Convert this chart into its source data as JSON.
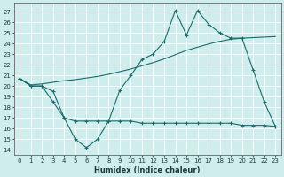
{
  "xlabel": "Humidex (Indice chaleur)",
  "bg_color": "#d0eded",
  "line_color": "#1a6b6b",
  "xlim": [
    -0.5,
    23.5
  ],
  "ylim": [
    13.5,
    27.8
  ],
  "yticks": [
    14,
    15,
    16,
    17,
    18,
    19,
    20,
    21,
    22,
    23,
    24,
    25,
    26,
    27
  ],
  "xticks": [
    0,
    1,
    2,
    3,
    4,
    5,
    6,
    7,
    8,
    9,
    10,
    11,
    12,
    13,
    14,
    15,
    16,
    17,
    18,
    19,
    20,
    21,
    22,
    23
  ],
  "line1_x": [
    0,
    1,
    2,
    3,
    4,
    5,
    6,
    7,
    8,
    9,
    10,
    11,
    12,
    13,
    14,
    15,
    16,
    17,
    18,
    19,
    20,
    21,
    22,
    23
  ],
  "line1_y": [
    20.7,
    20.0,
    20.0,
    18.5,
    17.0,
    15.0,
    14.2,
    15.0,
    16.7,
    19.6,
    21.0,
    22.5,
    23.0,
    24.2,
    27.1,
    24.8,
    27.1,
    25.8,
    25.0,
    24.5,
    24.5,
    21.5,
    18.5,
    16.2
  ],
  "line2_x": [
    0,
    1,
    2,
    3,
    4,
    5,
    6,
    7,
    8,
    9,
    10,
    11,
    12,
    13,
    14,
    15,
    16,
    17,
    18,
    19,
    20,
    21,
    22,
    23
  ],
  "line2_y": [
    20.7,
    20.0,
    20.0,
    19.5,
    17.0,
    16.7,
    16.7,
    16.7,
    16.7,
    16.7,
    16.7,
    16.5,
    16.5,
    16.5,
    16.5,
    16.5,
    16.5,
    16.5,
    16.5,
    16.5,
    16.3,
    16.3,
    16.3,
    16.2
  ],
  "line3_x": [
    0,
    1,
    2,
    3,
    4,
    5,
    6,
    7,
    8,
    9,
    10,
    11,
    12,
    13,
    14,
    15,
    16,
    17,
    18,
    19,
    20,
    21,
    22,
    23
  ],
  "line3_y": [
    20.7,
    20.1,
    20.2,
    20.35,
    20.5,
    20.6,
    20.75,
    20.9,
    21.1,
    21.35,
    21.6,
    21.9,
    22.2,
    22.55,
    22.95,
    23.35,
    23.65,
    23.95,
    24.2,
    24.4,
    24.5,
    24.55,
    24.6,
    24.65
  ]
}
